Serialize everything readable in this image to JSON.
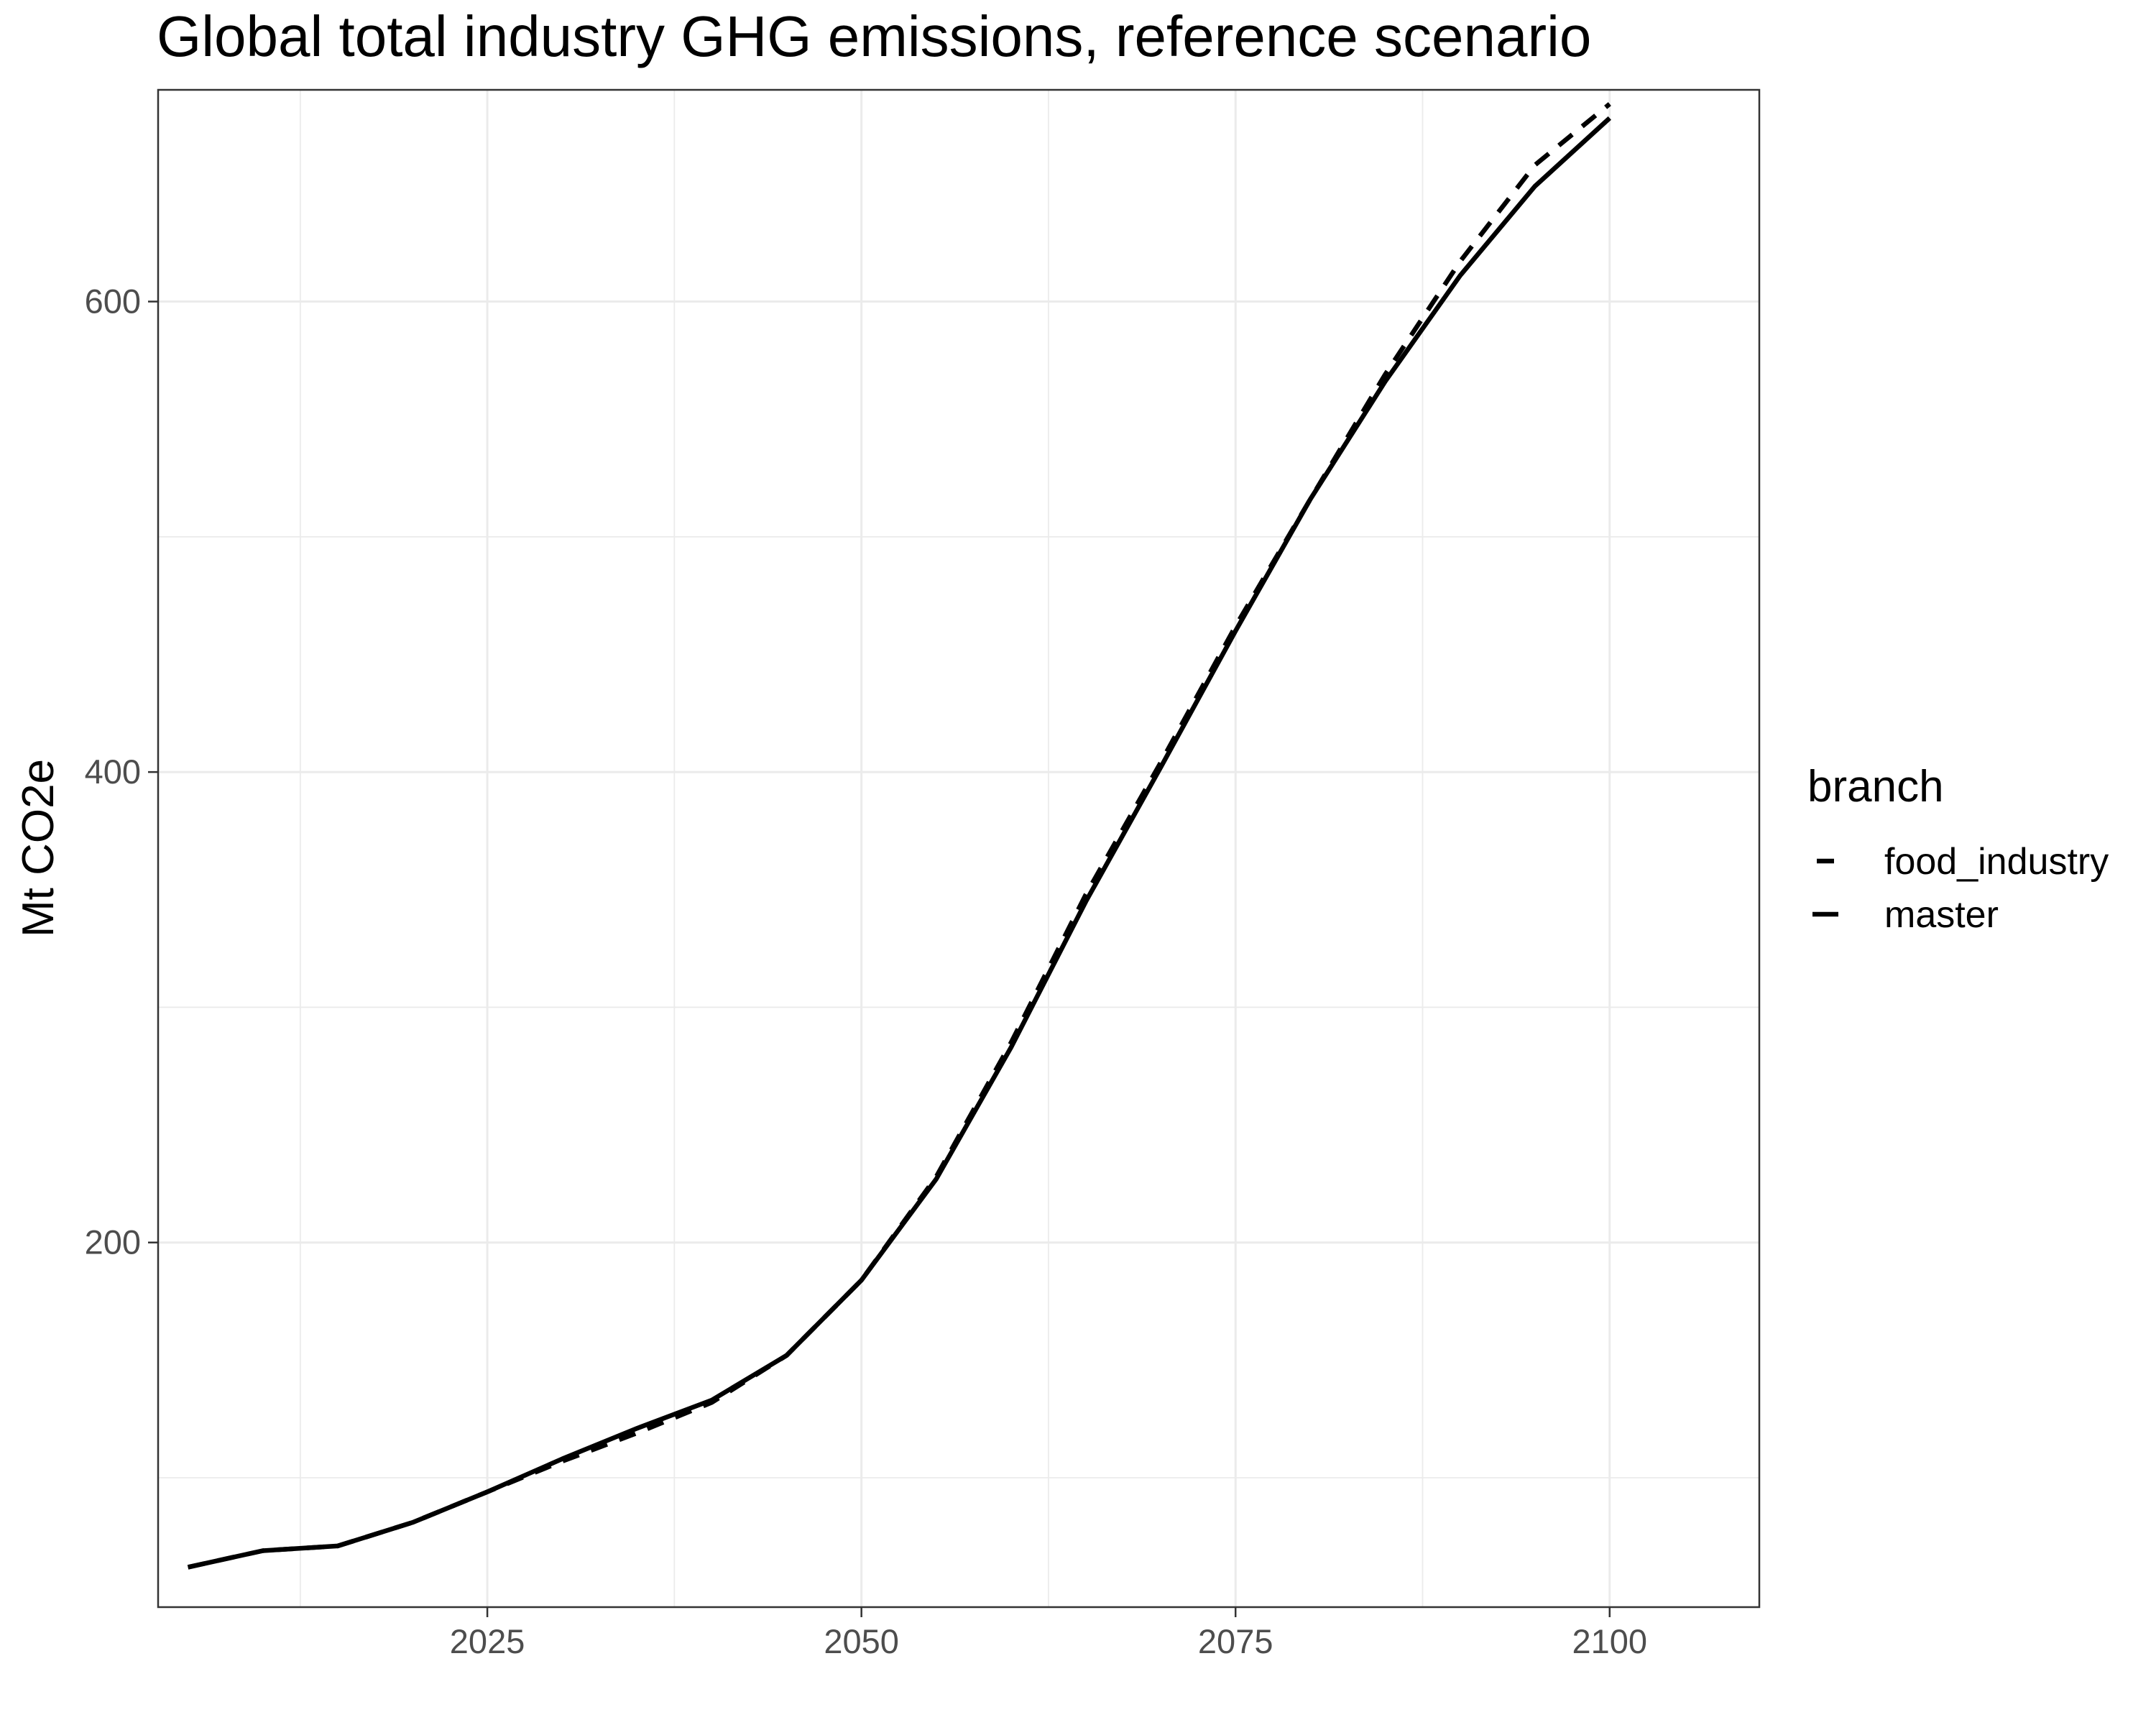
{
  "chart_data": {
    "type": "line",
    "title": "Global total industry GHG emissions, reference scenario",
    "xlabel": "",
    "ylabel": "Mt CO2e",
    "xlim": [
      2003,
      2110
    ],
    "ylim": [
      45,
      690
    ],
    "x_ticks": [
      2025,
      2050,
      2075,
      2100
    ],
    "y_ticks": [
      200,
      400,
      600
    ],
    "x_minor_ticks": [
      2012.5,
      2037.5,
      2062.5,
      2087.5
    ],
    "y_minor_ticks": [
      100,
      300,
      500
    ],
    "grid": true,
    "legend": {
      "title": "branch",
      "position": "right"
    },
    "x": [
      2005,
      2010,
      2015,
      2020,
      2025,
      2030,
      2035,
      2040,
      2045,
      2050,
      2055,
      2060,
      2065,
      2070,
      2075,
      2080,
      2085,
      2090,
      2095,
      2100
    ],
    "series": [
      {
        "name": "food_industry",
        "linetype": "dashed",
        "color": "#000000",
        "values": [
          62,
          69,
          71,
          81,
          94,
          107,
          119,
          132,
          152,
          184,
          228,
          285,
          348,
          404,
          462,
          516,
          569,
          617,
          658,
          684
        ]
      },
      {
        "name": "master",
        "linetype": "solid",
        "color": "#000000",
        "values": [
          62,
          69,
          71,
          81,
          94,
          108,
          121,
          133,
          152,
          184,
          227,
          283,
          345,
          402,
          460,
          516,
          566,
          611,
          649,
          678
        ]
      }
    ]
  }
}
